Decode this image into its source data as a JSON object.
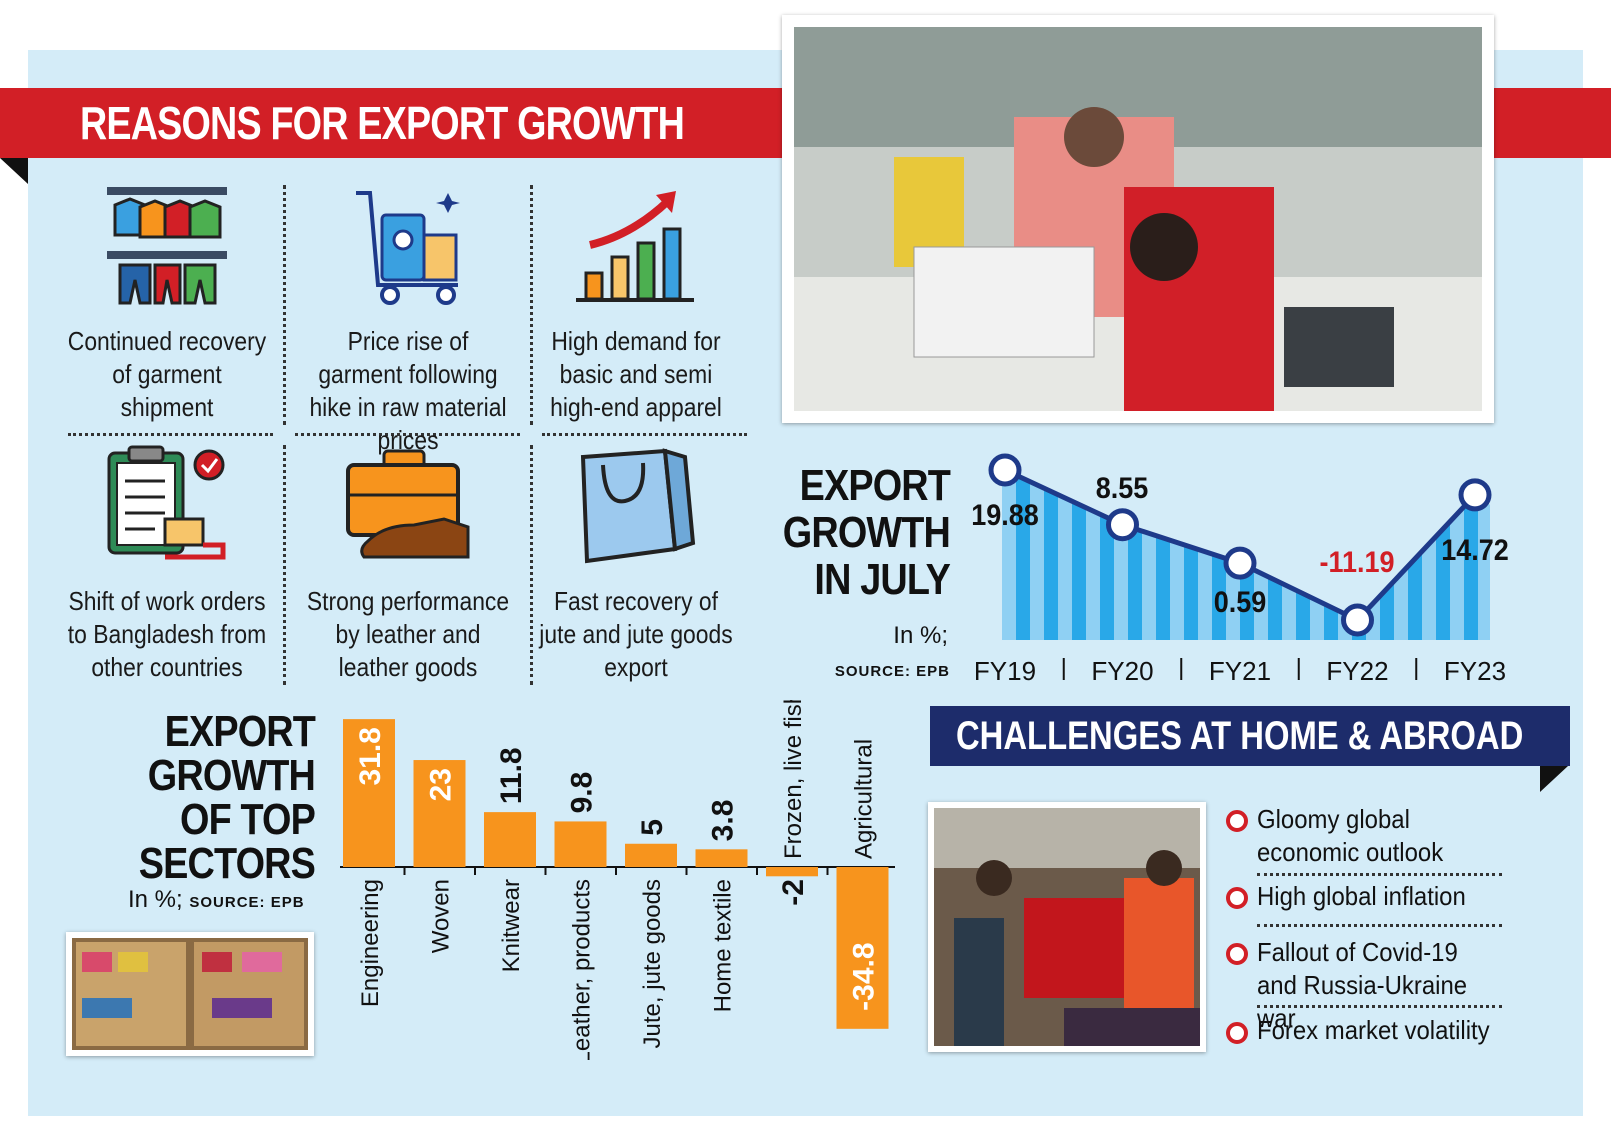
{
  "reasons": {
    "title": "REASONS FOR EXPORT GROWTH",
    "items": [
      {
        "text": "Continued recovery of garment shipment",
        "icon": "clothes-rack-icon"
      },
      {
        "text": "Price rise of garment following hike in raw material prices",
        "icon": "luggage-cart-icon"
      },
      {
        "text": "High demand for basic and semi high-end apparel",
        "icon": "growth-chart-icon"
      },
      {
        "text": "Shift of work orders to Bangladesh from other countries",
        "icon": "clipboard-delivery-icon"
      },
      {
        "text": "Strong performance by leather and leather goods",
        "icon": "briefcase-shoe-icon"
      },
      {
        "text": "Fast recovery of jute and jute goods export",
        "icon": "shopping-bag-icon"
      }
    ]
  },
  "july_chart": {
    "title_lines": [
      "EXPORT",
      "GROWTH",
      "IN JULY"
    ],
    "unit": "In %;",
    "source": "SOURCE: EPB"
  },
  "sector_chart": {
    "title_lines": [
      "EXPORT",
      "GROWTH",
      "OF TOP",
      "SECTORS"
    ],
    "unit": "In %;",
    "source": "SOURCE: EPB"
  },
  "challenges": {
    "title": "CHALLENGES AT HOME & ABROAD",
    "items": [
      "Gloomy global economic outlook",
      "High global inflation",
      "Fallout of Covid-19 and Russia-Ukraine war",
      "Forex market volatility"
    ]
  },
  "colors": {
    "accent_red": "#d21f26",
    "navy": "#1d2c6b",
    "bar_orange": "#f7941d",
    "line_blue": "#1e3a8a",
    "bg": "#d4ecf8"
  },
  "chart_data": [
    {
      "type": "line",
      "title": "EXPORT GROWTH IN JULY",
      "x": [
        "FY19",
        "FY20",
        "FY21",
        "FY22",
        "FY23"
      ],
      "y": [
        19.88,
        8.55,
        0.59,
        -11.19,
        14.72
      ],
      "labels": [
        "19.88",
        "8.55",
        "0.59",
        "-11.19",
        "14.72"
      ],
      "ylabel": "In %",
      "negative_color": "#d21f26"
    },
    {
      "type": "bar",
      "title": "EXPORT GROWTH OF TOP SECTORS",
      "categories": [
        "Engineering",
        "Woven",
        "Knitwear",
        "Leather, products",
        "Jute, jute goods",
        "Home textile",
        "Frozen, live fish",
        "Agricultural"
      ],
      "values": [
        31.8,
        23,
        11.8,
        9.8,
        5,
        3.8,
        -2,
        -34.8
      ],
      "labels": [
        "31.8",
        "23",
        "11.8",
        "9.8",
        "5",
        "3.8",
        "-2",
        "-34.8"
      ],
      "ylabel": "In %"
    }
  ]
}
